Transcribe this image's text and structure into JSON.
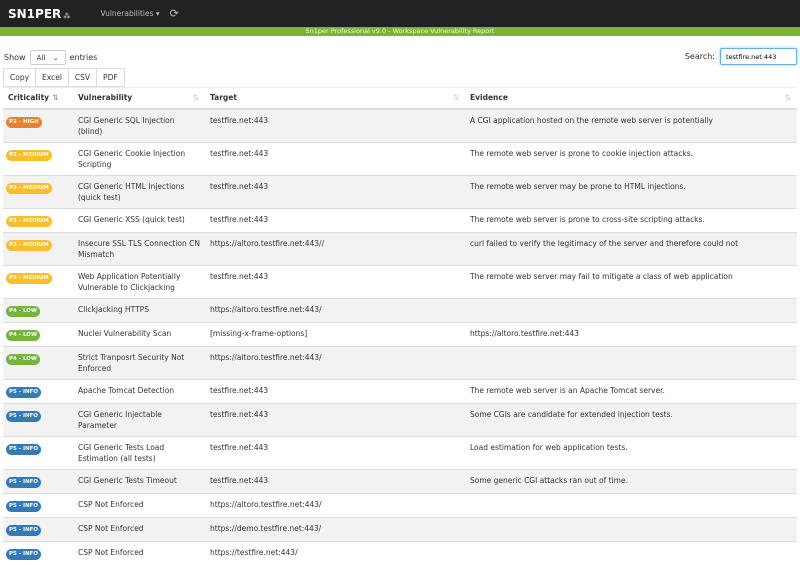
{
  "nav": {
    "logo": "SN1PER",
    "logo_mark": "⁂",
    "menu": "Vulnerabilities ▾",
    "refresh_icon": "refresh-icon"
  },
  "banner": "Sn1per Professional v9.0 - Workspace Vulnerability Report",
  "controls": {
    "show_label": "Show",
    "show_value": "All",
    "entries_label": "entries",
    "buttons": [
      "Copy",
      "Excel",
      "CSV",
      "PDF"
    ],
    "search_label": "Search:",
    "search_value": "testfire.net:443"
  },
  "table": {
    "headers": [
      "Criticality",
      "Vulnerability",
      "Target",
      "Evidence"
    ],
    "colors": {
      "P2 - HIGH": "#e8812c",
      "P3 - MEDIUM": "#f8bf2b",
      "P4 - LOW": "#72b53b",
      "P5 - INFO": "#337ab7"
    },
    "rows": [
      {
        "crit": "P2 - HIGH",
        "vuln": "CGI Generic SQL Injection (blind)",
        "target": "testfire.net:443",
        "evidence": "A CGI application hosted on the remote web server is potentially"
      },
      {
        "crit": "P3 - MEDIUM",
        "vuln": "CGI Generic Cookie Injection Scripting",
        "target": "testfire.net:443",
        "evidence": "The remote web server is prone to cookie injection attacks."
      },
      {
        "crit": "P3 - MEDIUM",
        "vuln": "CGI Generic HTML Injections (quick test)",
        "target": "testfire.net:443",
        "evidence": "The remote web server may be prone to HTML injections."
      },
      {
        "crit": "P3 - MEDIUM",
        "vuln": "CGI Generic XSS (quick test)",
        "target": "testfire.net:443",
        "evidence": "The remote web server is prone to cross-site scripting attacks."
      },
      {
        "crit": "P3 - MEDIUM",
        "vuln": "Insecure SSL TLS Connection CN Mismatch",
        "target": "https://altoro.testfire.net:443//",
        "evidence": "curl failed to verify the legitimacy of the server and therefore could not"
      },
      {
        "crit": "P3 - MEDIUM",
        "vuln": "Web Application Potentially Vulnerable to Clickjacking",
        "target": "testfire.net:443",
        "evidence": "The remote web server may fail to mitigate a class of web application"
      },
      {
        "crit": "P4 - LOW",
        "vuln": "Clickjacking HTTPS",
        "target": "https://altoro.testfire.net:443/",
        "evidence": ""
      },
      {
        "crit": "P4 - LOW",
        "vuln": "Nuclei Vulnerability Scan",
        "target": "[missing-x-frame-options]",
        "evidence": "https://altoro.testfire.net:443"
      },
      {
        "crit": "P4 - LOW",
        "vuln": "Strict Tranposrt Security Not Enforced",
        "target": "https://altoro.testfire.net:443/",
        "evidence": ""
      },
      {
        "crit": "P5 - INFO",
        "vuln": "Apache Tomcat Detection",
        "target": "testfire.net:443",
        "evidence": "The remote web server is an Apache Tomcat server."
      },
      {
        "crit": "P5 - INFO",
        "vuln": "CGI Generic Injectable Parameter",
        "target": "testfire.net:443",
        "evidence": "Some CGIs are candidate for extended injection tests."
      },
      {
        "crit": "P5 - INFO",
        "vuln": "CGI Generic Tests Load Estimation (all tests)",
        "target": "testfire.net:443",
        "evidence": "Load estimation for web application tests."
      },
      {
        "crit": "P5 - INFO",
        "vuln": "CGI Generic Tests Timeout",
        "target": "testfire.net:443",
        "evidence": "Some generic CGI attacks ran out of time."
      },
      {
        "crit": "P5 - INFO",
        "vuln": "CSP Not Enforced",
        "target": "https://altoro.testfire.net:443/",
        "evidence": ""
      },
      {
        "crit": "P5 - INFO",
        "vuln": "CSP Not Enforced",
        "target": "https://demo.testfire.net:443/",
        "evidence": ""
      },
      {
        "crit": "P5 - INFO",
        "vuln": "CSP Not Enforced",
        "target": "https://testfire.net:443/",
        "evidence": ""
      }
    ]
  }
}
